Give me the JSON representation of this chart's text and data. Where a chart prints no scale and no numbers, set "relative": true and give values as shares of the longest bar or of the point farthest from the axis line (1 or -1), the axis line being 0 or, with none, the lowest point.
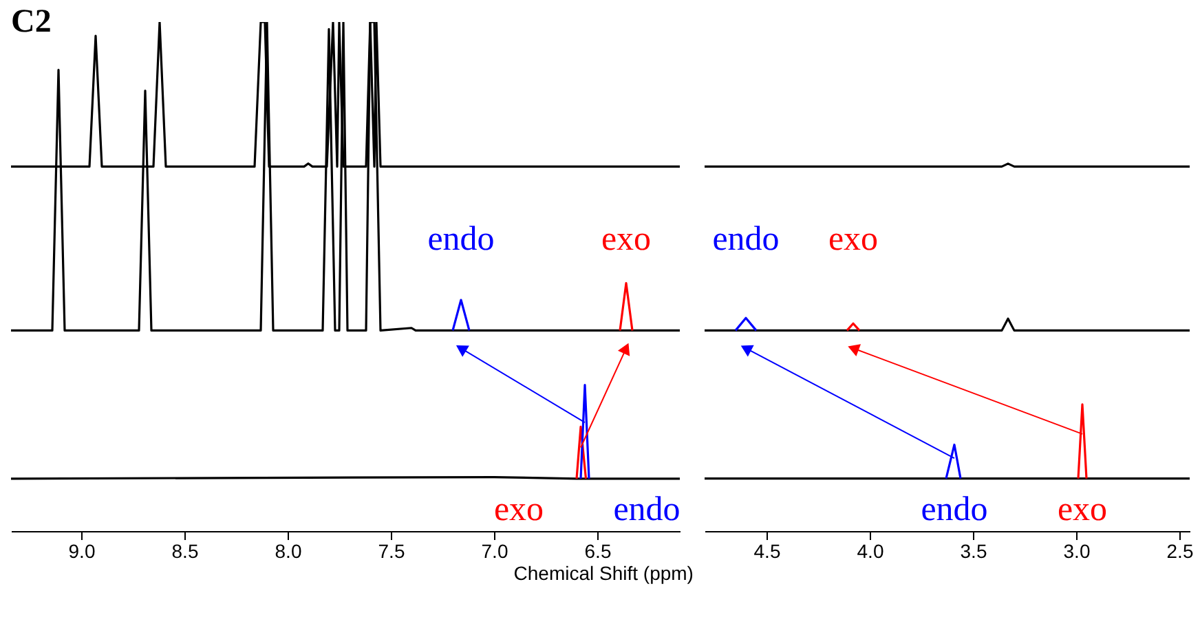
{
  "chart_data": [
    {
      "type": "line",
      "title": "C2",
      "xlabel": "Chemical Shift (ppm)",
      "relative": true,
      "tick_labels": "x",
      "xlim": [
        9.34,
        6.1
      ],
      "xticks": [
        {
          "value": 9,
          "label": "9.0"
        },
        8.5,
        {
          "value": 8,
          "label": "8.0"
        },
        7.5,
        {
          "value": 7,
          "label": "7.0"
        },
        6.5
      ],
      "series": [
        {
          "color": "#000000",
          "x": [
            9.34,
            8.96,
            8.93,
            8.9,
            8.65,
            8.62,
            8.59,
            8.16,
            8.13,
            8.11,
            8.09,
            7.92,
            7.9,
            7.88,
            7.81,
            7.78,
            7.76,
            7.75,
            7.73,
            7.62,
            7.6,
            7.58,
            7.57,
            7.55,
            6.1
          ],
          "values": [
            0.716,
            0.716,
            0.973,
            0.716,
            0.716,
            1,
            0.716,
            0.716,
            1,
            1,
            0.716,
            0.716,
            0.722,
            0.716,
            0.716,
            1,
            0.716,
            1,
            0.716,
            0.716,
            1,
            0.716,
            1,
            0.716,
            0.716
          ]
        },
        {
          "color": "#000000",
          "x": [
            9.34,
            9.14,
            9.11,
            9.08,
            8.72,
            8.69,
            8.66,
            8.13,
            8.1,
            8.07,
            7.83,
            7.8,
            7.77,
            7.75,
            7.73,
            7.71,
            7.62,
            7.6,
            7.58,
            7.55,
            7.4,
            7.38,
            6.1
          ],
          "values": [
            0.394,
            0.394,
            0.906,
            0.394,
            0.394,
            0.865,
            0.394,
            0.394,
            1,
            0.394,
            0.394,
            0.986,
            0.394,
            0.394,
            1,
            0.394,
            0.394,
            1,
            1,
            0.394,
            0.399,
            0.394,
            0.394
          ]
        },
        {
          "color": "#000000",
          "x": [
            9.34,
            7.0,
            6.6,
            6.1
          ],
          "values": [
            0.103,
            0.106,
            0.103,
            0.103
          ]
        },
        {
          "color": "#0000ff",
          "x": [
            7.2,
            7.16,
            7.12
          ],
          "values": [
            0.394,
            0.454,
            0.394
          ]
        },
        {
          "color": "#ff0000",
          "x": [
            6.39,
            6.36,
            6.33
          ],
          "values": [
            0.394,
            0.487,
            0.394
          ]
        },
        {
          "color": "#ff0000",
          "x": [
            6.6,
            6.58,
            6.555
          ],
          "values": [
            0.103,
            0.205,
            0.103
          ]
        },
        {
          "color": "#0000ff",
          "x": [
            6.58,
            6.56,
            6.54
          ],
          "values": [
            0.103,
            0.287,
            0.103
          ]
        }
      ],
      "annotations": [
        "endo",
        "exo",
        "exo",
        "endo"
      ]
    },
    {
      "type": "line",
      "relative": true,
      "tick_labels": "x",
      "xlim": [
        4.8,
        2.45
      ],
      "xticks": [
        4.5,
        {
          "value": 4,
          "label": "4.0"
        },
        3.5,
        {
          "value": 3,
          "label": "3.0"
        },
        2.5
      ],
      "series": [
        {
          "color": "#000000",
          "x": [
            4.8,
            3.36,
            3.33,
            3.3,
            2.45
          ],
          "values": [
            0.992,
            0.992,
            1,
            0.992,
            0.992
          ]
        },
        {
          "color": "#000000",
          "x": [
            4.8,
            3.36,
            3.33,
            3.3,
            2.45
          ],
          "values": [
            0.546,
            0.546,
            0.578,
            0.546,
            0.546
          ]
        },
        {
          "color": "#000000",
          "x": [
            4.8,
            2.45
          ],
          "values": [
            0.143,
            0.143
          ]
        },
        {
          "color": "#0000ff",
          "x": [
            4.65,
            4.6,
            4.55
          ],
          "values": [
            0.546,
            0.58,
            0.546
          ]
        },
        {
          "color": "#ff0000",
          "x": [
            4.11,
            4.08,
            4.05
          ],
          "values": [
            0.546,
            0.565,
            0.546
          ]
        },
        {
          "color": "#0000ff",
          "x": [
            3.63,
            3.59,
            3.56
          ],
          "values": [
            0.143,
            0.235,
            0.143
          ]
        },
        {
          "color": "#ff0000",
          "x": [
            2.99,
            2.97,
            2.95
          ],
          "values": [
            0.143,
            0.345,
            0.143
          ]
        }
      ],
      "annotations": [
        "endo",
        "exo",
        "endo",
        "exo"
      ]
    }
  ]
}
